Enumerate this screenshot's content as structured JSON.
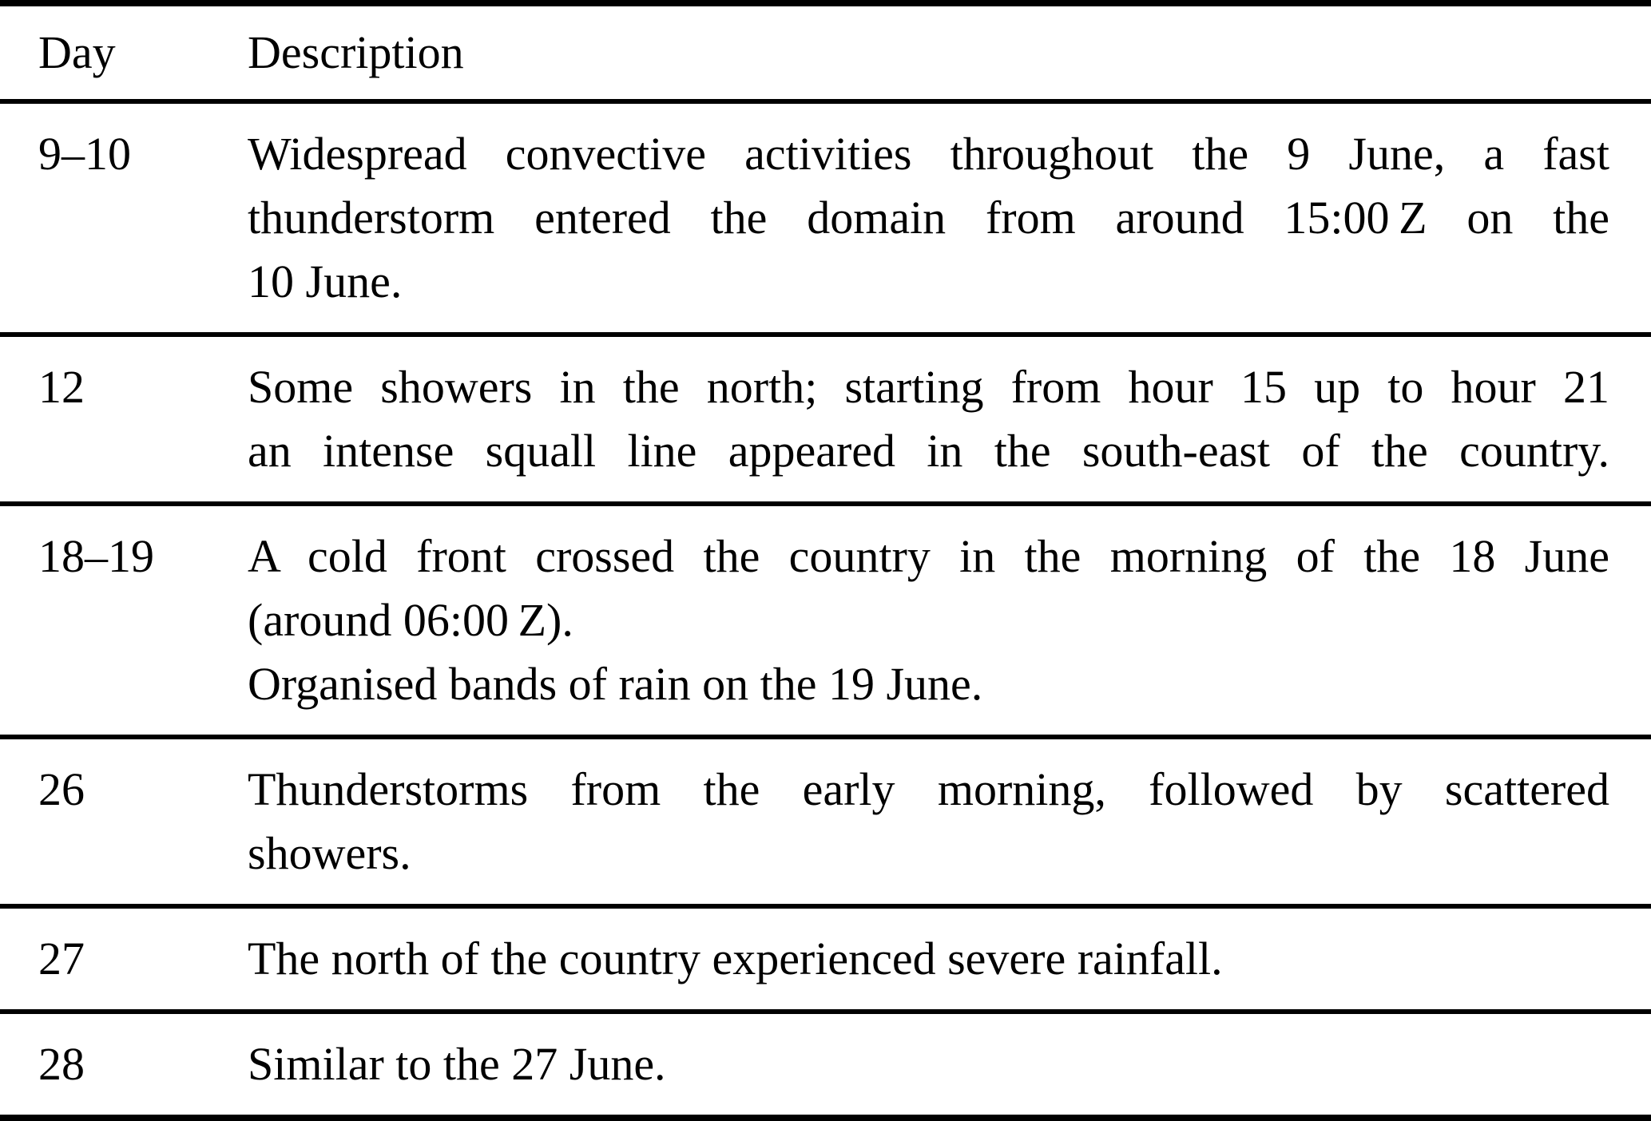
{
  "table": {
    "headers": {
      "day": "Day",
      "description": "Description"
    },
    "rows": [
      {
        "day": "9–10",
        "lines": [
          "Widespread convective activities throughout the 9 June, a fast",
          "thunderstorm entered the domain from around 15:00 Z on the",
          "10 June."
        ]
      },
      {
        "day": "12",
        "lines": [
          "Some showers in the north; starting from hour 15 up to hour 21",
          "an intense squall line appeared in the south-east of the country."
        ]
      },
      {
        "day": "18–19",
        "lines": [
          "A cold front crossed the country in the morning of the 18 June",
          "(around 06:00 Z).",
          "Organised bands of rain on the 19 June."
        ]
      },
      {
        "day": "26",
        "lines": [
          "Thunderstorms from the early morning, followed by scattered",
          "showers."
        ]
      },
      {
        "day": "27",
        "lines": [
          "The north of the country experienced severe rainfall."
        ]
      },
      {
        "day": "28",
        "lines": [
          "Similar to the 27 June."
        ]
      }
    ]
  }
}
